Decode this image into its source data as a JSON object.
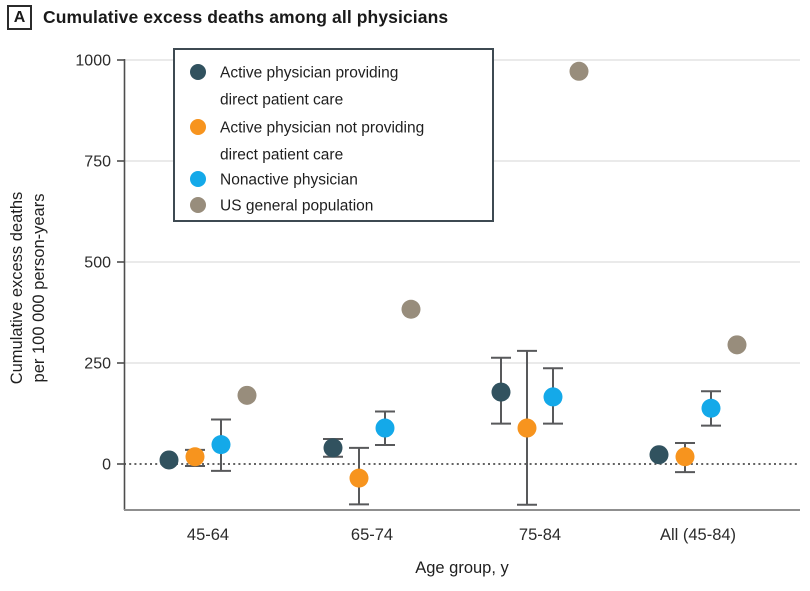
{
  "panel": {
    "label": "A",
    "title": "Cumulative excess deaths among all physicians"
  },
  "axes": {
    "y_label_line1": "Cumulative excess deaths",
    "y_label_line2": "per 100 000 person-years",
    "x_label": "Age group, y"
  },
  "legend": {
    "items": [
      {
        "name": "Active physician providing direct patient care",
        "color": "#31525F",
        "lines": [
          "Active physician providing",
          "direct patient care"
        ]
      },
      {
        "name": "Active physician not providing direct patient care",
        "color": "#F7941E",
        "lines": [
          "Active physician not providing",
          "direct patient care"
        ]
      },
      {
        "name": "Nonactive physician",
        "color": "#14A9E9",
        "lines": [
          "Nonactive physician"
        ]
      },
      {
        "name": "US general population",
        "color": "#988D7C",
        "lines": [
          "US general population"
        ]
      }
    ]
  },
  "chart_data": {
    "type": "scatter",
    "title": "Cumulative excess deaths among all physicians",
    "xlabel": "Age group, y",
    "ylabel": "Cumulative excess deaths per 100 000 person-years",
    "categories": [
      "45-64",
      "65-74",
      "75-84",
      "All (45-84)"
    ],
    "yticks": [
      0,
      250,
      500,
      750,
      1000
    ],
    "ylim": [
      -115,
      1010
    ],
    "grid": "horizontal-light",
    "zero_line": "dotted",
    "legend_position": "top-left",
    "error_bars": "95% CI whiskers",
    "series": [
      {
        "name": "Active physician providing direct patient care",
        "color": "#31525F",
        "values": [
          10,
          40,
          178,
          23
        ],
        "ci_low": [
          null,
          18,
          100,
          null
        ],
        "ci_high": [
          null,
          62,
          263,
          null
        ]
      },
      {
        "name": "Active physician not providing direct patient care",
        "color": "#F7941E",
        "values": [
          18,
          -35,
          89,
          18
        ],
        "ci_low": [
          -5,
          -100,
          -101,
          -20
        ],
        "ci_high": [
          35,
          40,
          280,
          52
        ]
      },
      {
        "name": "Nonactive physician",
        "color": "#14A9E9",
        "values": [
          48,
          89,
          166,
          138
        ],
        "ci_low": [
          -17,
          47,
          100,
          95
        ],
        "ci_high": [
          110,
          130,
          237,
          180
        ]
      },
      {
        "name": "US general population",
        "color": "#988D7C",
        "values": [
          170,
          383,
          972,
          295
        ],
        "ci_low": [
          null,
          null,
          null,
          null
        ],
        "ci_high": [
          null,
          null,
          null,
          null
        ]
      }
    ]
  }
}
